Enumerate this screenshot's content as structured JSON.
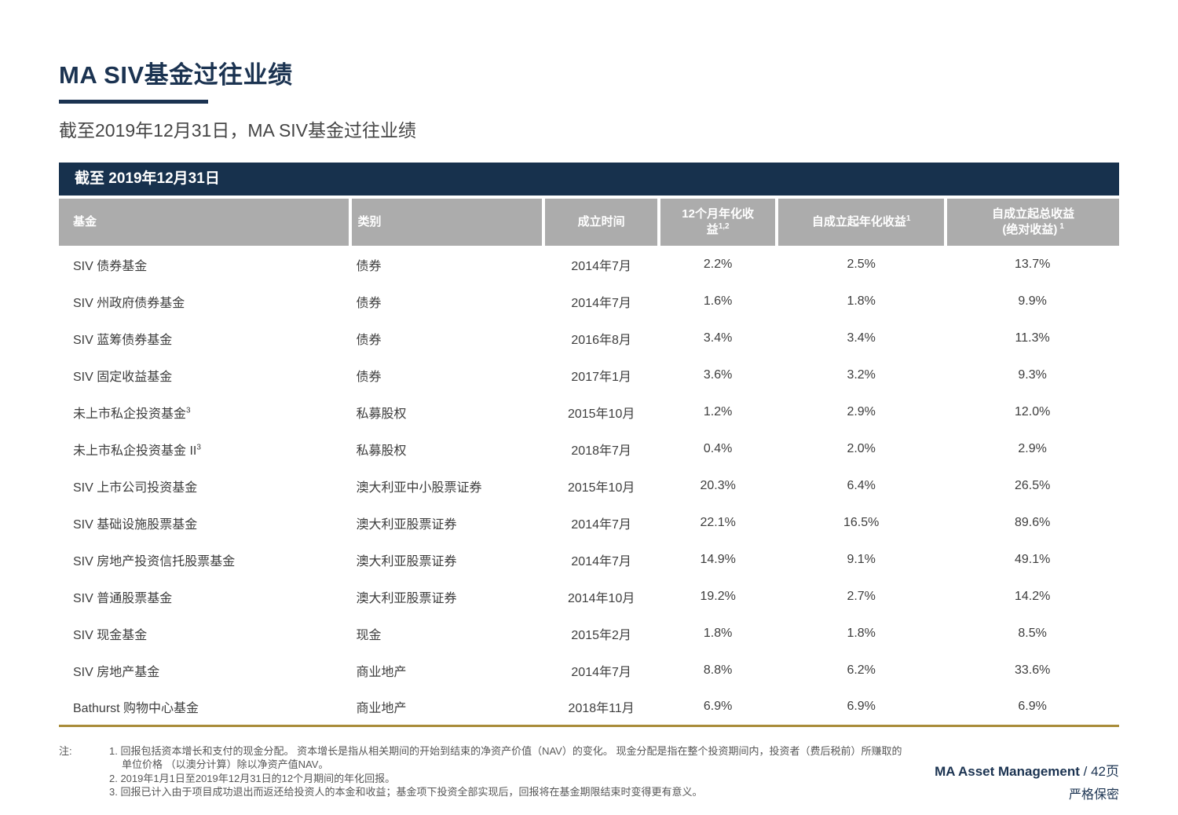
{
  "page": {
    "title": "MA SIV基金过往业绩",
    "subtitle": "截至2019年12月31日，MA SIV基金过往业绩"
  },
  "table": {
    "banner": "截至 2019年12月31日",
    "columns": [
      {
        "label": "基金",
        "sup": ""
      },
      {
        "label": "类别",
        "sup": ""
      },
      {
        "label": "成立时间",
        "sup": ""
      },
      {
        "label": "12个月年化收益",
        "sup": "1,2"
      },
      {
        "label": "自成立起年化收益",
        "sup": "1"
      },
      {
        "label": "自成立起总收益",
        "label2": "(绝对收益)",
        "sup": "1"
      }
    ],
    "rows": [
      {
        "fund": "SIV 债券基金",
        "fund_sup": "",
        "category": "债券",
        "inception": "2014年7月",
        "return_12m": "2.2%",
        "since_annualized": "2.5%",
        "since_total": "13.7%"
      },
      {
        "fund": "SIV 州政府债券基金",
        "fund_sup": "",
        "category": "债券",
        "inception": "2014年7月",
        "return_12m": "1.6%",
        "since_annualized": "1.8%",
        "since_total": "9.9%"
      },
      {
        "fund": "SIV 蓝筹债券基金",
        "fund_sup": "",
        "category": "债券",
        "inception": "2016年8月",
        "return_12m": "3.4%",
        "since_annualized": "3.4%",
        "since_total": "11.3%"
      },
      {
        "fund": "SIV 固定收益基金",
        "fund_sup": "",
        "category": "债券",
        "inception": "2017年1月",
        "return_12m": "3.6%",
        "since_annualized": "3.2%",
        "since_total": "9.3%"
      },
      {
        "fund": "未上市私企投资基金",
        "fund_sup": "3",
        "category": "私募股权",
        "inception": "2015年10月",
        "return_12m": "1.2%",
        "since_annualized": "2.9%",
        "since_total": "12.0%"
      },
      {
        "fund": "未上市私企投资基金 II",
        "fund_sup": "3",
        "category": "私募股权",
        "inception": "2018年7月",
        "return_12m": "0.4%",
        "since_annualized": "2.0%",
        "since_total": "2.9%"
      },
      {
        "fund": "SIV 上市公司投资基金",
        "fund_sup": "",
        "category": "澳大利亚中小股票证券",
        "inception": "2015年10月",
        "return_12m": "20.3%",
        "since_annualized": "6.4%",
        "since_total": "26.5%"
      },
      {
        "fund": "SIV 基础设施股票基金",
        "fund_sup": "",
        "category": "澳大利亚股票证券",
        "inception": "2014年7月",
        "return_12m": "22.1%",
        "since_annualized": "16.5%",
        "since_total": "89.6%"
      },
      {
        "fund": "SIV 房地产投资信托股票基金",
        "fund_sup": "",
        "category": "澳大利亚股票证券",
        "inception": "2014年7月",
        "return_12m": "14.9%",
        "since_annualized": "9.1%",
        "since_total": "49.1%"
      },
      {
        "fund": "SIV 普通股票基金",
        "fund_sup": "",
        "category": "澳大利亚股票证券",
        "inception": "2014年10月",
        "return_12m": "19.2%",
        "since_annualized": "2.7%",
        "since_total": "14.2%"
      },
      {
        "fund": "SIV 现金基金",
        "fund_sup": "",
        "category": "现金",
        "inception": "2015年2月",
        "return_12m": "1.8%",
        "since_annualized": "1.8%",
        "since_total": "8.5%"
      },
      {
        "fund": "SIV 房地产基金",
        "fund_sup": "",
        "category": "商业地产",
        "inception": "2014年7月",
        "return_12m": "8.8%",
        "since_annualized": "6.2%",
        "since_total": "33.6%"
      },
      {
        "fund": "Bathurst 购物中心基金",
        "fund_sup": "",
        "category": "商业地产",
        "inception": "2018年11月",
        "return_12m": "6.9%",
        "since_annualized": "6.9%",
        "since_total": "6.9%"
      }
    ]
  },
  "notes": {
    "label": "注:",
    "lines": [
      "1. 回报包括资本增长和支付的现金分配。 资本增长是指从相关期间的开始到结束的净资产价值（NAV）的变化。 现金分配是指在整个投资期间内，投资者（费后税前）所赚取的",
      "单位价格 （以澳分计算）除以净资产值NAV。",
      "2. 2019年1月1日至2019年12月31日的12个月期间的年化回报。",
      "3. 回报已计入由于项目成功退出而返还给投资人的本金和收益；基金项下投资全部实现后，回报将在基金期限结束时变得更有意义。"
    ]
  },
  "footer": {
    "brand": "MA Asset Management",
    "page_suffix": " / 42页",
    "confidential": "严格保密"
  },
  "colors": {
    "navy": "#17314d",
    "header_gray": "#acacac",
    "gold_rule": "#a98c39",
    "body_text": "#3d3d3d"
  }
}
